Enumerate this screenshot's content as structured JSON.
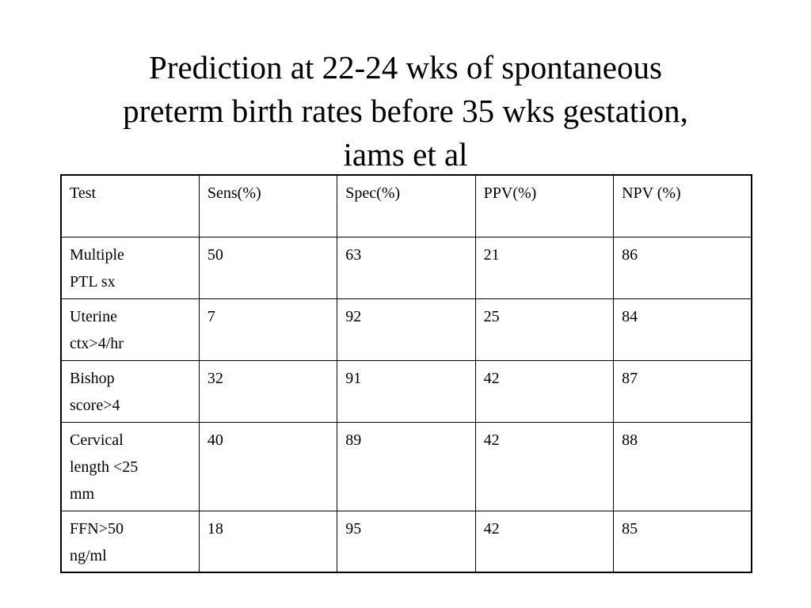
{
  "slide": {
    "title_lines": [
      "Prediction at 22-24 wks of spontaneous",
      "preterm birth rates before 35 wks gestation,",
      "iams et al"
    ]
  },
  "table": {
    "headers": [
      "Test",
      "Sens(%)",
      "Spec(%)",
      "PPV(%)",
      "NPV (%)"
    ],
    "rows": [
      {
        "test_lines": [
          "Multiple",
          "PTL sx"
        ],
        "values": [
          "50",
          "63",
          "21",
          "86"
        ]
      },
      {
        "test_lines": [
          "Uterine",
          "ctx>4/hr"
        ],
        "values": [
          "7",
          "92",
          "25",
          "84"
        ]
      },
      {
        "test_lines": [
          "Bishop",
          "score>4"
        ],
        "values": [
          "32",
          "91",
          "42",
          "87"
        ]
      },
      {
        "test_lines": [
          "Cervical",
          "length <25",
          "mm"
        ],
        "values": [
          "40",
          "89",
          "42",
          "88"
        ]
      },
      {
        "test_lines": [
          "FFN>50",
          "ng/ml"
        ],
        "values": [
          "18",
          "95",
          "42",
          "85"
        ]
      }
    ]
  }
}
